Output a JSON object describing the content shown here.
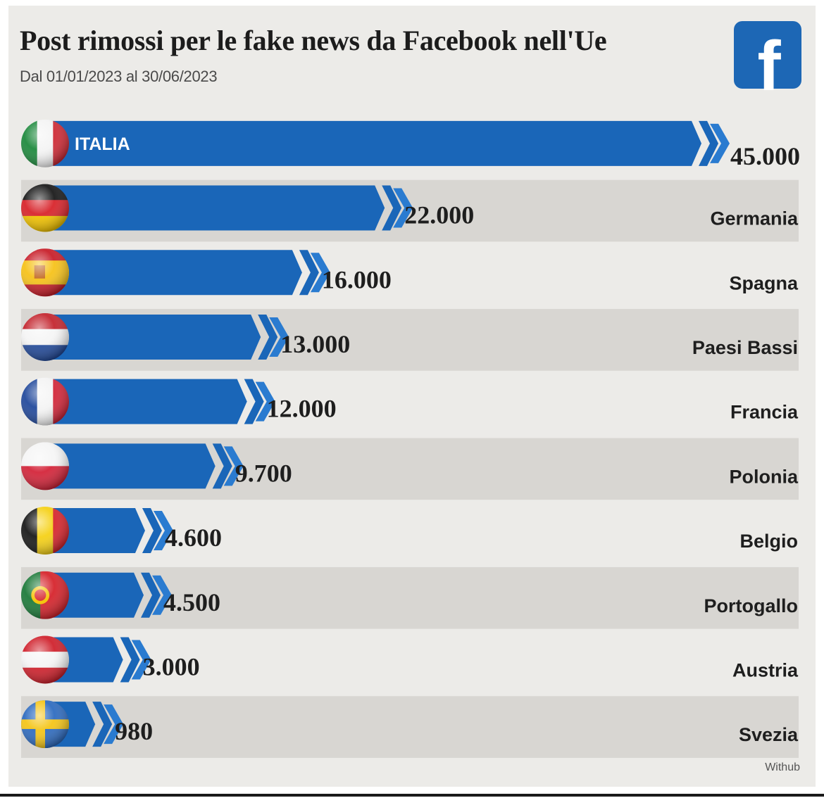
{
  "header": {
    "title": "Post rimossi per le fake news da Facebook nell'Ue",
    "subtitle": "Dal 01/01/2023 al 30/06/2023",
    "logo_letter": "f",
    "logo_icon": "facebook-logo-icon"
  },
  "source": "Withub",
  "colors": {
    "bar": "#1a66b8",
    "bar_light": "#2a7bd0",
    "band": "#d8d6d2",
    "background": "#ecebe8",
    "logo": "#1d67b5"
  },
  "chart_data": {
    "type": "bar",
    "orientation": "horizontal",
    "title": "Post rimossi per le fake news da Facebook nell'Ue",
    "subtitle": "Dal 01/01/2023 al 30/06/2023",
    "categories": [
      "ITALIA",
      "Germania",
      "Spagna",
      "Paesi Bassi",
      "Francia",
      "Polonia",
      "Belgio",
      "Portogallo",
      "Austria",
      "Svezia"
    ],
    "values": [
      45000,
      22000,
      16000,
      13000,
      12000,
      9700,
      4600,
      4500,
      3000,
      980
    ],
    "value_labels": [
      "45.000",
      "22.000",
      "16.000",
      "13.000",
      "12.000",
      "9.700",
      "4.600",
      "4.500",
      "3.000",
      "980"
    ],
    "flags": [
      "italy-flag-icon",
      "germany-flag-icon",
      "spain-flag-icon",
      "netherlands-flag-icon",
      "france-flag-icon",
      "poland-flag-icon",
      "belgium-flag-icon",
      "portugal-flag-icon",
      "austria-flag-icon",
      "sweden-flag-icon"
    ],
    "xlim": [
      0,
      45000
    ],
    "grid": false,
    "legend": "none"
  }
}
